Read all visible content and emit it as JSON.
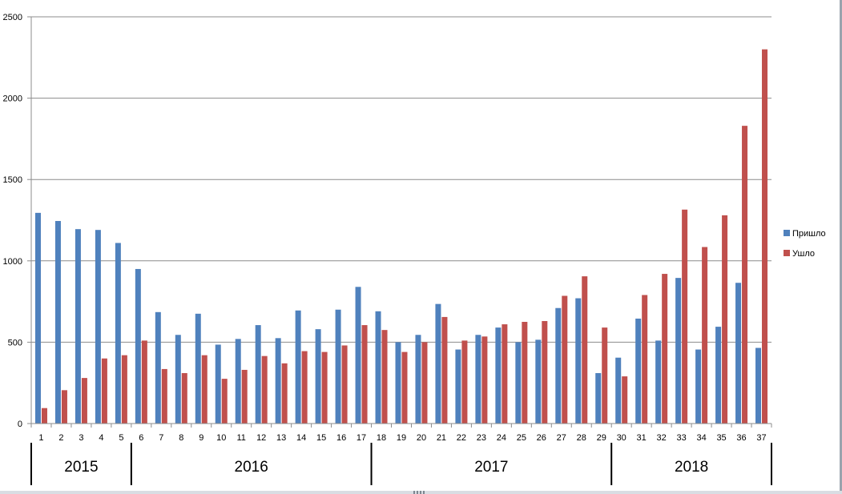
{
  "chart_data": {
    "type": "bar",
    "categories": [
      "1",
      "2",
      "3",
      "4",
      "5",
      "6",
      "7",
      "8",
      "9",
      "10",
      "11",
      "12",
      "13",
      "14",
      "15",
      "16",
      "17",
      "18",
      "19",
      "20",
      "21",
      "22",
      "23",
      "24",
      "25",
      "26",
      "27",
      "28",
      "29",
      "30",
      "31",
      "32",
      "33",
      "34",
      "35",
      "36",
      "37"
    ],
    "series": [
      {
        "name": "Пришло",
        "color": "#4f81bd",
        "values": [
          1295,
          1245,
          1195,
          1190,
          1110,
          950,
          685,
          545,
          675,
          485,
          520,
          605,
          525,
          695,
          580,
          700,
          840,
          690,
          500,
          545,
          735,
          455,
          545,
          590,
          500,
          515,
          710,
          770,
          310,
          405,
          645,
          510,
          895,
          455,
          595,
          865,
          465
        ]
      },
      {
        "name": "Ушло",
        "color": "#c0504d",
        "values": [
          95,
          205,
          280,
          400,
          420,
          510,
          335,
          310,
          420,
          275,
          330,
          415,
          370,
          445,
          440,
          480,
          605,
          575,
          440,
          500,
          655,
          510,
          535,
          610,
          625,
          630,
          785,
          905,
          590,
          290,
          790,
          920,
          1315,
          1085,
          1280,
          1830,
          2300
        ]
      }
    ],
    "ylim": [
      0,
      2500
    ],
    "yticks": [
      "0",
      "500",
      "1000",
      "1500",
      "2000",
      "2500"
    ],
    "grid": true,
    "legend_position": "right",
    "year_groups": [
      {
        "label": "2015",
        "start": 1,
        "end": 5
      },
      {
        "label": "2016",
        "start": 6,
        "end": 17
      },
      {
        "label": "2017",
        "start": 18,
        "end": 29
      },
      {
        "label": "2018",
        "start": 30,
        "end": 37
      }
    ]
  }
}
